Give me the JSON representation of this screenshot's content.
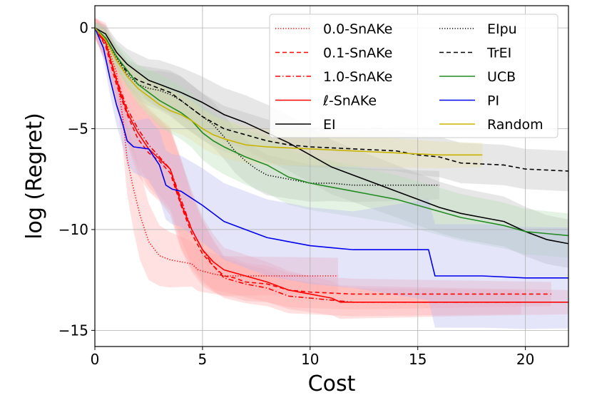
{
  "chart_data": {
    "type": "line",
    "title": "",
    "xlabel": "Cost",
    "ylabel": "log (Regret)",
    "xlim": [
      0,
      22
    ],
    "ylim": [
      -15.8,
      1.1
    ],
    "xticks": [
      0,
      5,
      10,
      15,
      20
    ],
    "yticks": [
      0,
      -5,
      -10,
      -15
    ],
    "grid": true,
    "legend_position": "top-right",
    "legend_columns": 2,
    "series": [
      {
        "name": "0.0-SnAKe",
        "color": "#ff0000",
        "dash": "dotted",
        "band": "#ffaaaa",
        "points": [
          [
            0,
            0
          ],
          [
            0.5,
            -0.6
          ],
          [
            1,
            -2.2
          ],
          [
            1.3,
            -4.5
          ],
          [
            1.5,
            -6.5
          ],
          [
            1.8,
            -8
          ],
          [
            2.1,
            -9.3
          ],
          [
            2.5,
            -10.6
          ],
          [
            3,
            -11.3
          ],
          [
            3.5,
            -11.5
          ],
          [
            4,
            -11.6
          ],
          [
            4.5,
            -11.7
          ],
          [
            4.8,
            -12.0
          ],
          [
            5.5,
            -12.2
          ],
          [
            6,
            -12.3
          ],
          [
            8,
            -12.3
          ],
          [
            11.3,
            -12.3
          ]
        ],
        "spread": [
          [
            0,
            0.5
          ],
          [
            1,
            1.2
          ],
          [
            2,
            2.3
          ],
          [
            3,
            1.5
          ],
          [
            5,
            1.0
          ],
          [
            11.3,
            0.9
          ]
        ]
      },
      {
        "name": "0.1-SnAKe",
        "color": "#ff0000",
        "dash": "dashed",
        "band": "#ffaaaa",
        "points": [
          [
            0,
            0
          ],
          [
            0.5,
            -0.9
          ],
          [
            1,
            -2.8
          ],
          [
            1.5,
            -4.3
          ],
          [
            2,
            -5.5
          ],
          [
            2.5,
            -6.2
          ],
          [
            3,
            -6.6
          ],
          [
            3.5,
            -7.2
          ],
          [
            4,
            -8.8
          ],
          [
            4.5,
            -10.2
          ],
          [
            5,
            -11.2
          ],
          [
            5.5,
            -11.8
          ],
          [
            6,
            -12.3
          ],
          [
            6.5,
            -12.4
          ],
          [
            7,
            -12.6
          ],
          [
            8,
            -12.7
          ],
          [
            9,
            -13.0
          ],
          [
            10,
            -13.1
          ],
          [
            12,
            -13.2
          ],
          [
            15,
            -13.2
          ],
          [
            18,
            -13.2
          ],
          [
            21.2,
            -13.2
          ]
        ],
        "spread": [
          [
            0,
            0.5
          ],
          [
            2,
            1.8
          ],
          [
            4,
            2.2
          ],
          [
            6,
            1.0
          ],
          [
            10,
            0.8
          ],
          [
            21.2,
            0.6
          ]
        ]
      },
      {
        "name": "1.0-SnAKe",
        "color": "#ff0000",
        "dash": "dashdot",
        "band": "#ffaaaa",
        "points": [
          [
            0,
            0
          ],
          [
            0.5,
            -0.8
          ],
          [
            1,
            -2.5
          ],
          [
            1.5,
            -4.0
          ],
          [
            2,
            -5.0
          ],
          [
            2.5,
            -5.8
          ],
          [
            3,
            -6.4
          ],
          [
            3.5,
            -7.0
          ],
          [
            4,
            -8.5
          ],
          [
            4.5,
            -10.0
          ],
          [
            5,
            -11.0
          ],
          [
            5.5,
            -11.8
          ],
          [
            6,
            -12.4
          ],
          [
            7,
            -12.7
          ],
          [
            8,
            -12.9
          ],
          [
            9,
            -13.3
          ],
          [
            10,
            -13.4
          ],
          [
            11,
            -13.5
          ],
          [
            12,
            -13.6
          ],
          [
            16,
            -13.6
          ],
          [
            19.8,
            -13.6
          ]
        ],
        "spread": [
          [
            0,
            0.5
          ],
          [
            2,
            1.8
          ],
          [
            4,
            2.0
          ],
          [
            6,
            1.0
          ],
          [
            12,
            0.7
          ],
          [
            19.8,
            0.6
          ]
        ]
      },
      {
        "name": "ℓ-SnAKe",
        "color": "#ff0000",
        "dash": "solid",
        "band": "#ffaaaa",
        "points": [
          [
            0,
            0
          ],
          [
            0.5,
            -0.7
          ],
          [
            1,
            -2.6
          ],
          [
            1.5,
            -4.2
          ],
          [
            2,
            -5.2
          ],
          [
            2.5,
            -6.0
          ],
          [
            3,
            -6.5
          ],
          [
            3.5,
            -7.0
          ],
          [
            4,
            -8.7
          ],
          [
            4.5,
            -10.0
          ],
          [
            5,
            -11.0
          ],
          [
            5.5,
            -11.6
          ],
          [
            6,
            -12.0
          ],
          [
            7,
            -12.3
          ],
          [
            8,
            -12.6
          ],
          [
            9,
            -13.0
          ],
          [
            10,
            -13.2
          ],
          [
            11,
            -13.4
          ],
          [
            11.4,
            -13.6
          ],
          [
            16,
            -13.6
          ],
          [
            22,
            -13.6
          ]
        ],
        "spread": [
          [
            0,
            0.5
          ],
          [
            2,
            1.8
          ],
          [
            4,
            2.2
          ],
          [
            6,
            1.1
          ],
          [
            12,
            0.8
          ],
          [
            22,
            0.6
          ]
        ]
      },
      {
        "name": "EI",
        "color": "#000000",
        "dash": "solid",
        "band": "#bbbbbb",
        "points": [
          [
            0,
            0
          ],
          [
            0.5,
            -0.3
          ],
          [
            1,
            -1.2
          ],
          [
            1.5,
            -1.8
          ],
          [
            2,
            -2.2
          ],
          [
            2.5,
            -2.6
          ],
          [
            3,
            -2.8
          ],
          [
            3.5,
            -3.0
          ],
          [
            4,
            -3.2
          ],
          [
            5,
            -3.7
          ],
          [
            6,
            -4.3
          ],
          [
            7,
            -4.7
          ],
          [
            8,
            -5.2
          ],
          [
            9,
            -5.7
          ],
          [
            10,
            -6.3
          ],
          [
            11,
            -6.9
          ],
          [
            12,
            -7.3
          ],
          [
            13,
            -7.7
          ],
          [
            14,
            -8.1
          ],
          [
            15,
            -8.5
          ],
          [
            16,
            -8.9
          ],
          [
            17,
            -9.2
          ],
          [
            18,
            -9.4
          ],
          [
            19,
            -9.6
          ],
          [
            20,
            -10.1
          ],
          [
            21,
            -10.5
          ],
          [
            22,
            -10.7
          ]
        ],
        "spread": [
          [
            0,
            0.3
          ],
          [
            3,
            1.2
          ],
          [
            8,
            1.4
          ],
          [
            14,
            1.3
          ],
          [
            22,
            1.2
          ]
        ]
      },
      {
        "name": "EIpu",
        "color": "#000000",
        "dash": "dotted",
        "band": "#bbbbbb",
        "points": [
          [
            0,
            0
          ],
          [
            0.5,
            -0.5
          ],
          [
            1,
            -1.5
          ],
          [
            1.5,
            -2.3
          ],
          [
            2,
            -2.8
          ],
          [
            2.5,
            -3.0
          ],
          [
            3,
            -3.1
          ],
          [
            3.5,
            -3.3
          ],
          [
            4,
            -3.6
          ],
          [
            4.5,
            -4.0
          ],
          [
            5,
            -4.4
          ],
          [
            5.5,
            -4.8
          ],
          [
            6,
            -5.4
          ],
          [
            6.5,
            -6.1
          ],
          [
            7,
            -6.6
          ],
          [
            7.5,
            -7.0
          ],
          [
            8,
            -7.3
          ],
          [
            9,
            -7.5
          ],
          [
            10,
            -7.7
          ],
          [
            11,
            -7.7
          ],
          [
            12,
            -7.8
          ],
          [
            14,
            -7.8
          ],
          [
            16,
            -7.8
          ]
        ],
        "spread": [
          [
            0,
            0.3
          ],
          [
            4,
            1.2
          ],
          [
            8,
            1.0
          ],
          [
            16,
            0.7
          ]
        ]
      },
      {
        "name": "TrEI",
        "color": "#000000",
        "dash": "dashed",
        "band": "#bbbbbb",
        "points": [
          [
            0,
            0
          ],
          [
            0.5,
            -0.5
          ],
          [
            1,
            -1.4
          ],
          [
            1.5,
            -2.2
          ],
          [
            2,
            -2.6
          ],
          [
            2.5,
            -2.8
          ],
          [
            3,
            -3.0
          ],
          [
            3.5,
            -3.2
          ],
          [
            4,
            -3.6
          ],
          [
            4.5,
            -4.0
          ],
          [
            5,
            -4.4
          ],
          [
            5.5,
            -4.7
          ],
          [
            6,
            -5.0
          ],
          [
            7,
            -5.3
          ],
          [
            8,
            -5.6
          ],
          [
            9,
            -5.8
          ],
          [
            10,
            -5.9
          ],
          [
            12,
            -6.0
          ],
          [
            14,
            -6.1
          ],
          [
            15,
            -6.3
          ],
          [
            16,
            -6.4
          ],
          [
            17,
            -6.7
          ],
          [
            19,
            -6.8
          ],
          [
            20,
            -7.0
          ],
          [
            22,
            -7.1
          ]
        ],
        "spread": [
          [
            0,
            0.3
          ],
          [
            4,
            1.2
          ],
          [
            10,
            1.0
          ],
          [
            22,
            1.0
          ]
        ]
      },
      {
        "name": "UCB",
        "color": "#228b22",
        "dash": "solid",
        "band": "#b4dcb4",
        "points": [
          [
            0,
            0
          ],
          [
            0.5,
            -0.5
          ],
          [
            1,
            -1.4
          ],
          [
            1.5,
            -2.1
          ],
          [
            2,
            -2.8
          ],
          [
            2.5,
            -3.2
          ],
          [
            3,
            -3.6
          ],
          [
            3.5,
            -3.9
          ],
          [
            4,
            -4.2
          ],
          [
            4.5,
            -4.6
          ],
          [
            5,
            -5.2
          ],
          [
            5.5,
            -5.6
          ],
          [
            6,
            -5.9
          ],
          [
            7,
            -6.4
          ],
          [
            8,
            -6.8
          ],
          [
            9,
            -7.4
          ],
          [
            10,
            -7.7
          ],
          [
            11,
            -7.9
          ],
          [
            12,
            -8.1
          ],
          [
            13,
            -8.3
          ],
          [
            14,
            -8.5
          ],
          [
            15,
            -8.8
          ],
          [
            16,
            -9.1
          ],
          [
            17,
            -9.4
          ],
          [
            18,
            -9.6
          ],
          [
            19,
            -9.8
          ],
          [
            20,
            -10.1
          ],
          [
            21,
            -10.2
          ],
          [
            22,
            -10.3
          ]
        ],
        "spread": [
          [
            0,
            0.3
          ],
          [
            3,
            1.3
          ],
          [
            8,
            1.4
          ],
          [
            14,
            1.2
          ],
          [
            22,
            1.1
          ]
        ]
      },
      {
        "name": "PI",
        "color": "#0000ee",
        "dash": "solid",
        "band": "#b4b4f0",
        "points": [
          [
            0,
            0
          ],
          [
            0.4,
            -1.0
          ],
          [
            0.7,
            -2.5
          ],
          [
            1,
            -3.8
          ],
          [
            1.3,
            -4.8
          ],
          [
            1.5,
            -5.6
          ],
          [
            1.8,
            -5.9
          ],
          [
            2.5,
            -6.0
          ],
          [
            3,
            -6.8
          ],
          [
            3.3,
            -7.8
          ],
          [
            3.6,
            -8.0
          ],
          [
            4,
            -8.1
          ],
          [
            5,
            -8.8
          ],
          [
            6,
            -9.6
          ],
          [
            7,
            -10.0
          ],
          [
            8,
            -10.4
          ],
          [
            9,
            -10.6
          ],
          [
            10,
            -10.8
          ],
          [
            11,
            -10.9
          ],
          [
            12,
            -11.0
          ],
          [
            13,
            -11.0
          ],
          [
            15.5,
            -11.0
          ],
          [
            15.8,
            -12.3
          ],
          [
            18,
            -12.3
          ],
          [
            20,
            -12.4
          ],
          [
            22,
            -12.4
          ]
        ],
        "spread": [
          [
            0,
            0.3
          ],
          [
            1,
            1.0
          ],
          [
            3,
            1.7
          ],
          [
            6,
            1.9
          ],
          [
            12,
            1.9
          ],
          [
            16,
            2.6
          ],
          [
            22,
            2.5
          ]
        ]
      },
      {
        "name": "Random",
        "color": "#c8b400",
        "dash": "solid",
        "band": "#e6dca0",
        "points": [
          [
            0,
            0
          ],
          [
            0.5,
            -0.6
          ],
          [
            1,
            -1.6
          ],
          [
            1.5,
            -2.4
          ],
          [
            2,
            -3.0
          ],
          [
            2.5,
            -3.4
          ],
          [
            3,
            -3.8
          ],
          [
            3.5,
            -4.1
          ],
          [
            4,
            -4.3
          ],
          [
            4.5,
            -4.6
          ],
          [
            5,
            -5.0
          ],
          [
            5.5,
            -5.3
          ],
          [
            6,
            -5.5
          ],
          [
            7,
            -5.8
          ],
          [
            8,
            -5.9
          ],
          [
            10,
            -6.0
          ],
          [
            12,
            -6.1
          ],
          [
            14,
            -6.2
          ],
          [
            16,
            -6.3
          ],
          [
            18,
            -6.3
          ]
        ],
        "spread": [
          [
            0,
            0.3
          ],
          [
            3,
            1.0
          ],
          [
            8,
            0.9
          ],
          [
            18,
            0.6
          ]
        ]
      }
    ]
  }
}
